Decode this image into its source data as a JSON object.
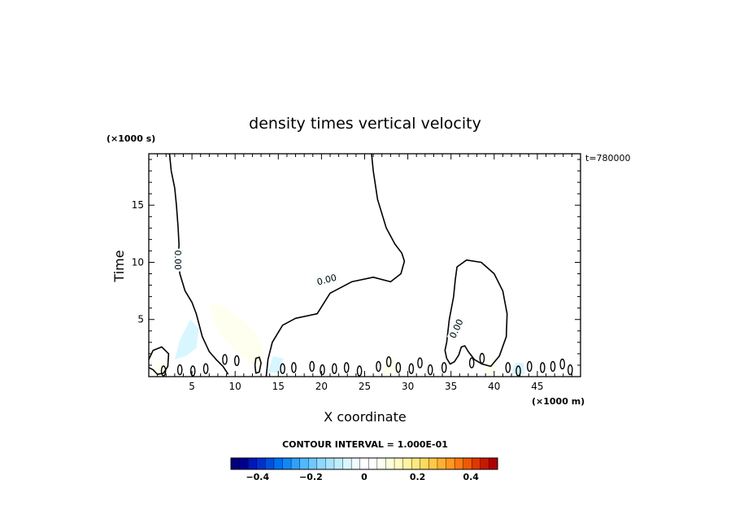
{
  "chart_data": {
    "type": "heatmap",
    "title": "density times vertical velocity",
    "xlabel": "X coordinate",
    "ylabel": "Time",
    "x_unit": "(×1000 m)",
    "y_unit": "(×1000 s)",
    "xlim": [
      0,
      50
    ],
    "ylim": [
      0,
      19.5
    ],
    "x_ticks": [
      5,
      10,
      15,
      20,
      25,
      30,
      35,
      40,
      45
    ],
    "y_ticks": [
      5,
      10,
      15
    ],
    "time_stamp": "t=780000",
    "contour_interval": "CONTOUR INTERVAL = 1.000E-01",
    "contour_level_label": "0.00",
    "colorbar": {
      "min": -0.5,
      "max": 0.5,
      "tick_values": [
        -0.4,
        -0.2,
        0,
        0.2,
        0.4
      ],
      "tick_labels": [
        "−0.4",
        "−0.2",
        "0",
        "0.2",
        "0.4"
      ],
      "colors": [
        "#000080",
        "#00008f",
        "#0018b8",
        "#0030d0",
        "#0050e0",
        "#0070f0",
        "#1088f8",
        "#30a0fc",
        "#50b8ff",
        "#70c8ff",
        "#90d8ff",
        "#a8e4ff",
        "#c0eeff",
        "#d8f6ff",
        "#ecfcff",
        "#ffffff",
        "#ffffff",
        "#fffff0",
        "#ffffd8",
        "#fffcc0",
        "#fff4a0",
        "#ffe880",
        "#ffd860",
        "#ffc848",
        "#ffb030",
        "#ff9820",
        "#ff7810",
        "#f05808",
        "#e03800",
        "#c81800",
        "#b00000"
      ]
    },
    "contours": [
      {
        "level": "0.00",
        "points": [
          [
            2.4,
            19.5
          ],
          [
            2.6,
            18
          ],
          [
            3,
            16.5
          ],
          [
            3.2,
            15
          ],
          [
            3.4,
            13
          ],
          [
            3.5,
            11.5
          ],
          [
            3.4,
            10.5
          ],
          [
            3.6,
            9
          ],
          [
            4.2,
            7.5
          ],
          [
            5,
            6.5
          ],
          [
            5.5,
            5.5
          ],
          [
            6.2,
            3.5
          ],
          [
            7,
            2.2
          ],
          [
            7.8,
            1.5
          ],
          [
            8.6,
            0.9
          ],
          [
            9.2,
            0.2
          ]
        ]
      },
      {
        "level": "0.00",
        "points": [
          [
            25.8,
            19.5
          ],
          [
            26,
            18
          ],
          [
            26.5,
            15.5
          ],
          [
            27.5,
            13
          ],
          [
            28.5,
            11.6
          ],
          [
            29.3,
            10.8
          ],
          [
            29.6,
            10.1
          ],
          [
            29.2,
            9
          ],
          [
            28,
            8.3
          ],
          [
            26,
            8.7
          ],
          [
            23.5,
            8.3
          ],
          [
            21,
            7.3
          ],
          [
            19.5,
            5.5
          ],
          [
            17,
            5.1
          ],
          [
            15.5,
            4.5
          ],
          [
            14.3,
            3
          ],
          [
            13.8,
            1.5
          ],
          [
            13.6,
            0
          ]
        ]
      },
      {
        "level": "0.00",
        "points": [
          [
            34.5,
            3
          ],
          [
            34.8,
            5
          ],
          [
            35.3,
            7
          ],
          [
            35.5,
            8.5
          ],
          [
            35.7,
            9.6
          ],
          [
            36.8,
            10.2
          ],
          [
            38.5,
            10
          ],
          [
            40,
            9
          ],
          [
            41,
            7.5
          ],
          [
            41.5,
            5.5
          ],
          [
            41.4,
            3.5
          ],
          [
            40.6,
            1.8
          ],
          [
            39.6,
            0.9
          ],
          [
            38.6,
            1.1
          ],
          [
            37.7,
            1.5
          ],
          [
            37,
            2.2
          ],
          [
            36.6,
            2.7
          ],
          [
            36.2,
            2.6
          ],
          [
            35.9,
            1.9
          ],
          [
            35.4,
            1.3
          ],
          [
            34.9,
            1.1
          ],
          [
            34.5,
            1.6
          ],
          [
            34.3,
            2.3
          ],
          [
            34.5,
            3
          ]
        ]
      },
      {
        "level": "0.00",
        "points": [
          [
            0,
            1.5
          ],
          [
            0.5,
            2.3
          ],
          [
            1.5,
            2.6
          ],
          [
            2.3,
            2
          ],
          [
            2.2,
            0.9
          ],
          [
            1.7,
            0.3
          ],
          [
            1,
            0.2
          ],
          [
            0.5,
            0.6
          ],
          [
            0,
            0.8
          ]
        ]
      },
      {
        "level": "0.00",
        "points": [
          [
            12.3,
            1
          ],
          [
            12.4,
            1.6
          ],
          [
            12.8,
            1.7
          ],
          [
            13,
            1.2
          ],
          [
            12.8,
            0.4
          ],
          [
            12.4,
            0.3
          ],
          [
            12.3,
            1
          ]
        ]
      }
    ],
    "filled_regions": [
      {
        "sign": "positive",
        "value": 0.05,
        "points": [
          [
            7,
            6.5
          ],
          [
            8.5,
            6.2
          ],
          [
            10.5,
            5.2
          ],
          [
            12.5,
            3.8
          ],
          [
            13.4,
            2
          ],
          [
            13,
            0.8
          ],
          [
            11.5,
            1.2
          ],
          [
            10,
            2.2
          ],
          [
            8.5,
            3.5
          ],
          [
            7.4,
            5
          ]
        ]
      },
      {
        "sign": "positive",
        "value": 0.05,
        "points": [
          [
            0.5,
            0.2
          ],
          [
            1,
            1.2
          ],
          [
            1.8,
            1.4
          ],
          [
            2,
            0.2
          ]
        ]
      },
      {
        "sign": "positive",
        "value": 0.05,
        "points": [
          [
            27,
            0.2
          ],
          [
            27.5,
            1.5
          ],
          [
            28.8,
            1.6
          ],
          [
            29.4,
            0.2
          ]
        ]
      },
      {
        "sign": "positive",
        "value": 0.05,
        "points": [
          [
            38.8,
            0.2
          ],
          [
            39.2,
            1.4
          ],
          [
            40.2,
            1.5
          ],
          [
            40.5,
            0.2
          ]
        ]
      },
      {
        "sign": "negative",
        "value": -0.05,
        "points": [
          [
            3,
            1.5
          ],
          [
            3.6,
            3.2
          ],
          [
            4.8,
            5
          ],
          [
            5.8,
            4.2
          ],
          [
            5.5,
            2.5
          ],
          [
            4.3,
            1.8
          ]
        ]
      },
      {
        "sign": "negative",
        "value": -0.05,
        "points": [
          [
            13.8,
            0.4
          ],
          [
            14.4,
            1.8
          ],
          [
            15.6,
            1.6
          ],
          [
            15.2,
            0.3
          ]
        ]
      },
      {
        "sign": "negative",
        "value": -0.05,
        "points": [
          [
            42,
            0.2
          ],
          [
            42.4,
            1.2
          ],
          [
            43.4,
            1.2
          ],
          [
            43.6,
            0.2
          ]
        ]
      }
    ],
    "small_contours": [
      [
        1.7,
        0.5
      ],
      [
        3.6,
        0.6
      ],
      [
        5.1,
        0.5
      ],
      [
        6.6,
        0.7
      ],
      [
        8.8,
        1.5
      ],
      [
        10.2,
        1.4
      ],
      [
        15.5,
        0.7
      ],
      [
        16.8,
        0.8
      ],
      [
        18.9,
        0.9
      ],
      [
        20.1,
        0.6
      ],
      [
        21.5,
        0.7
      ],
      [
        22.9,
        0.8
      ],
      [
        24.4,
        0.5
      ],
      [
        26.6,
        0.9
      ],
      [
        27.8,
        1.3
      ],
      [
        28.9,
        0.8
      ],
      [
        30.4,
        0.7
      ],
      [
        31.4,
        1.2
      ],
      [
        32.6,
        0.6
      ],
      [
        34.2,
        0.8
      ],
      [
        37.4,
        1.2
      ],
      [
        38.6,
        1.6
      ],
      [
        41.6,
        0.8
      ],
      [
        42.8,
        0.5
      ],
      [
        44.1,
        0.9
      ],
      [
        45.6,
        0.8
      ],
      [
        46.8,
        0.9
      ],
      [
        47.9,
        1.1
      ],
      [
        48.8,
        0.6
      ]
    ]
  }
}
